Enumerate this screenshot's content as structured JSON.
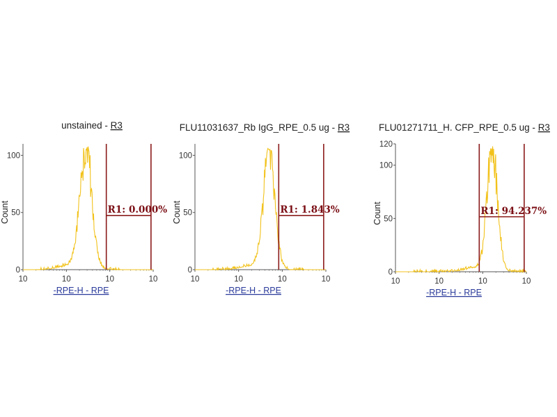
{
  "colors": {
    "histogram": "#f2c21b",
    "gate": "#8b1a1a",
    "axis": "#555555",
    "xlabel": "#2a3a9a"
  },
  "chart_data": [
    {
      "type": "histogram",
      "title": "unstained",
      "title_link": "R3",
      "xlabel": "-RPE-H - RPE",
      "ylabel": "Count",
      "x_scale": "log",
      "xlim_decades": [
        0,
        3
      ],
      "x_tick_labels": [
        "10",
        "10",
        "10",
        "10"
      ],
      "ylim": [
        0,
        110
      ],
      "y_ticks": [
        "0",
        "50",
        "100"
      ],
      "y_tick_values": [
        0,
        50,
        100
      ],
      "peak_decade": 1.45,
      "peak_width": 0.14,
      "peak_count": 108,
      "gate": {
        "name": "R1",
        "label": "R1: 0.000%",
        "x_start_decade": 1.92,
        "x_end_decade": 2.95
      }
    },
    {
      "type": "histogram",
      "title": "FLU11031637_Rb IgG_RPE_0.5 ug",
      "title_link": "R3",
      "xlabel": "-RPE-H - RPE",
      "ylabel": "Count",
      "x_scale": "log",
      "xlim_decades": [
        0,
        3
      ],
      "x_tick_labels": [
        "10",
        "10",
        "10",
        "10"
      ],
      "ylim": [
        0,
        110
      ],
      "y_ticks": [
        "0",
        "50",
        "100"
      ],
      "y_tick_values": [
        0,
        50,
        100
      ],
      "peak_decade": 1.7,
      "peak_width": 0.13,
      "peak_count": 106,
      "gate": {
        "name": "R1",
        "label": "R1: 1.843%",
        "x_start_decade": 1.92,
        "x_end_decade": 2.95
      }
    },
    {
      "type": "histogram",
      "title": "FLU01271711_H. CFP_RPE_0.5 ug",
      "title_link": "R3",
      "xlabel": "-RPE-H - RPE",
      "ylabel": "Count",
      "x_scale": "log",
      "xlim_decades": [
        0,
        3
      ],
      "x_tick_labels": [
        "10",
        "10",
        "10",
        "10"
      ],
      "ylim": [
        0,
        120
      ],
      "y_ticks": [
        "0",
        "50",
        "100",
        "120"
      ],
      "y_tick_values": [
        0,
        50,
        100,
        120
      ],
      "peak_decade": 2.22,
      "peak_width": 0.12,
      "peak_count": 118,
      "gate": {
        "name": "R1",
        "label": "R1: 94.237%",
        "x_start_decade": 1.92,
        "x_end_decade": 2.95
      }
    }
  ]
}
